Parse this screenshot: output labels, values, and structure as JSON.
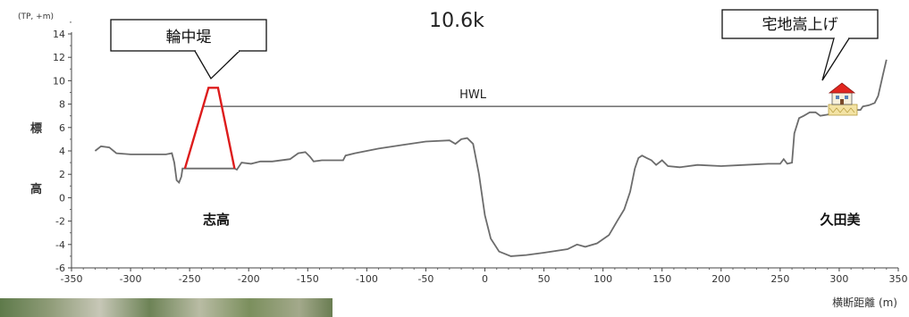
{
  "chart_data": {
    "type": "line",
    "title": "10.6k",
    "y_unit": "(TP, +m)",
    "ylabel": "標 高",
    "xlabel": "横断距離 (m)",
    "xlim": [
      -350,
      350
    ],
    "ylim": [
      -6,
      14
    ],
    "x_ticks": [
      "-350",
      "-300",
      "-250",
      "-200",
      "-150",
      "-100",
      "-50",
      "0",
      "50",
      "100",
      "150",
      "200",
      "250",
      "300",
      "350"
    ],
    "y_ticks": [
      "14",
      "12",
      "10",
      "8",
      "6",
      "4",
      "2",
      "0",
      "-2",
      "-4",
      "-6"
    ],
    "series": [
      {
        "values": [
          [
            -330,
            4.0
          ],
          [
            -325,
            4.4
          ],
          [
            -318,
            4.3
          ],
          [
            -312,
            3.8
          ],
          [
            -300,
            3.7
          ],
          [
            -285,
            3.7
          ],
          [
            -270,
            3.7
          ],
          [
            -265,
            3.8
          ],
          [
            -263,
            3.0
          ],
          [
            -261,
            1.5
          ],
          [
            -259,
            1.3
          ],
          [
            -257,
            1.8
          ],
          [
            -256,
            2.5
          ],
          [
            -230,
            2.5
          ],
          [
            -212,
            2.5
          ],
          [
            -210,
            2.4
          ],
          [
            -206,
            3.0
          ],
          [
            -198,
            2.9
          ],
          [
            -190,
            3.1
          ],
          [
            -180,
            3.1
          ],
          [
            -165,
            3.3
          ],
          [
            -158,
            3.8
          ],
          [
            -152,
            3.9
          ],
          [
            -148,
            3.5
          ],
          [
            -145,
            3.1
          ],
          [
            -138,
            3.2
          ],
          [
            -120,
            3.2
          ],
          [
            -118,
            3.6
          ],
          [
            -110,
            3.8
          ],
          [
            -90,
            4.2
          ],
          [
            -70,
            4.5
          ],
          [
            -50,
            4.8
          ],
          [
            -30,
            4.9
          ],
          [
            -25,
            4.6
          ],
          [
            -20,
            5.0
          ],
          [
            -15,
            5.1
          ],
          [
            -10,
            4.6
          ],
          [
            -5,
            2.0
          ],
          [
            0,
            -1.5
          ],
          [
            5,
            -3.5
          ],
          [
            12,
            -4.6
          ],
          [
            22,
            -5.0
          ],
          [
            35,
            -4.9
          ],
          [
            50,
            -4.7
          ],
          [
            70,
            -4.4
          ],
          [
            78,
            -4.0
          ],
          [
            85,
            -4.2
          ],
          [
            95,
            -3.9
          ],
          [
            105,
            -3.2
          ],
          [
            112,
            -2.0
          ],
          [
            118,
            -1.0
          ],
          [
            123,
            0.5
          ],
          [
            127,
            2.5
          ],
          [
            130,
            3.4
          ],
          [
            133,
            3.6
          ],
          [
            137,
            3.4
          ],
          [
            141,
            3.2
          ],
          [
            145,
            2.8
          ],
          [
            150,
            3.2
          ],
          [
            155,
            2.7
          ],
          [
            165,
            2.6
          ],
          [
            180,
            2.8
          ],
          [
            200,
            2.7
          ],
          [
            220,
            2.8
          ],
          [
            240,
            2.9
          ],
          [
            250,
            2.9
          ],
          [
            253,
            3.3
          ],
          [
            256,
            2.9
          ],
          [
            260,
            3.0
          ],
          [
            262,
            5.5
          ],
          [
            266,
            6.8
          ],
          [
            270,
            7.0
          ],
          [
            275,
            7.3
          ],
          [
            280,
            7.3
          ],
          [
            284,
            7.0
          ],
          [
            290,
            7.1
          ],
          [
            298,
            7.3
          ],
          [
            305,
            7.5
          ],
          [
            318,
            7.5
          ],
          [
            320,
            7.8
          ],
          [
            325,
            7.9
          ],
          [
            330,
            8.1
          ],
          [
            333,
            8.7
          ],
          [
            337,
            10.5
          ],
          [
            340,
            11.8
          ]
        ]
      }
    ],
    "hwl": {
      "label": "HWL",
      "value": 7.8,
      "x_start": -238,
      "x_end": 290
    },
    "levee": {
      "label": "輪中堤",
      "x_base_left": -254,
      "x_base_right": -212,
      "x_top_left": -234,
      "x_top_right": -226,
      "top": 9.4,
      "base": 2.5,
      "color": "#dd1c1c"
    },
    "raised_lot": {
      "label": "宅地嵩上げ",
      "x": 308,
      "base": 7.5
    },
    "left_bank": "志高",
    "right_bank": "久田美"
  }
}
